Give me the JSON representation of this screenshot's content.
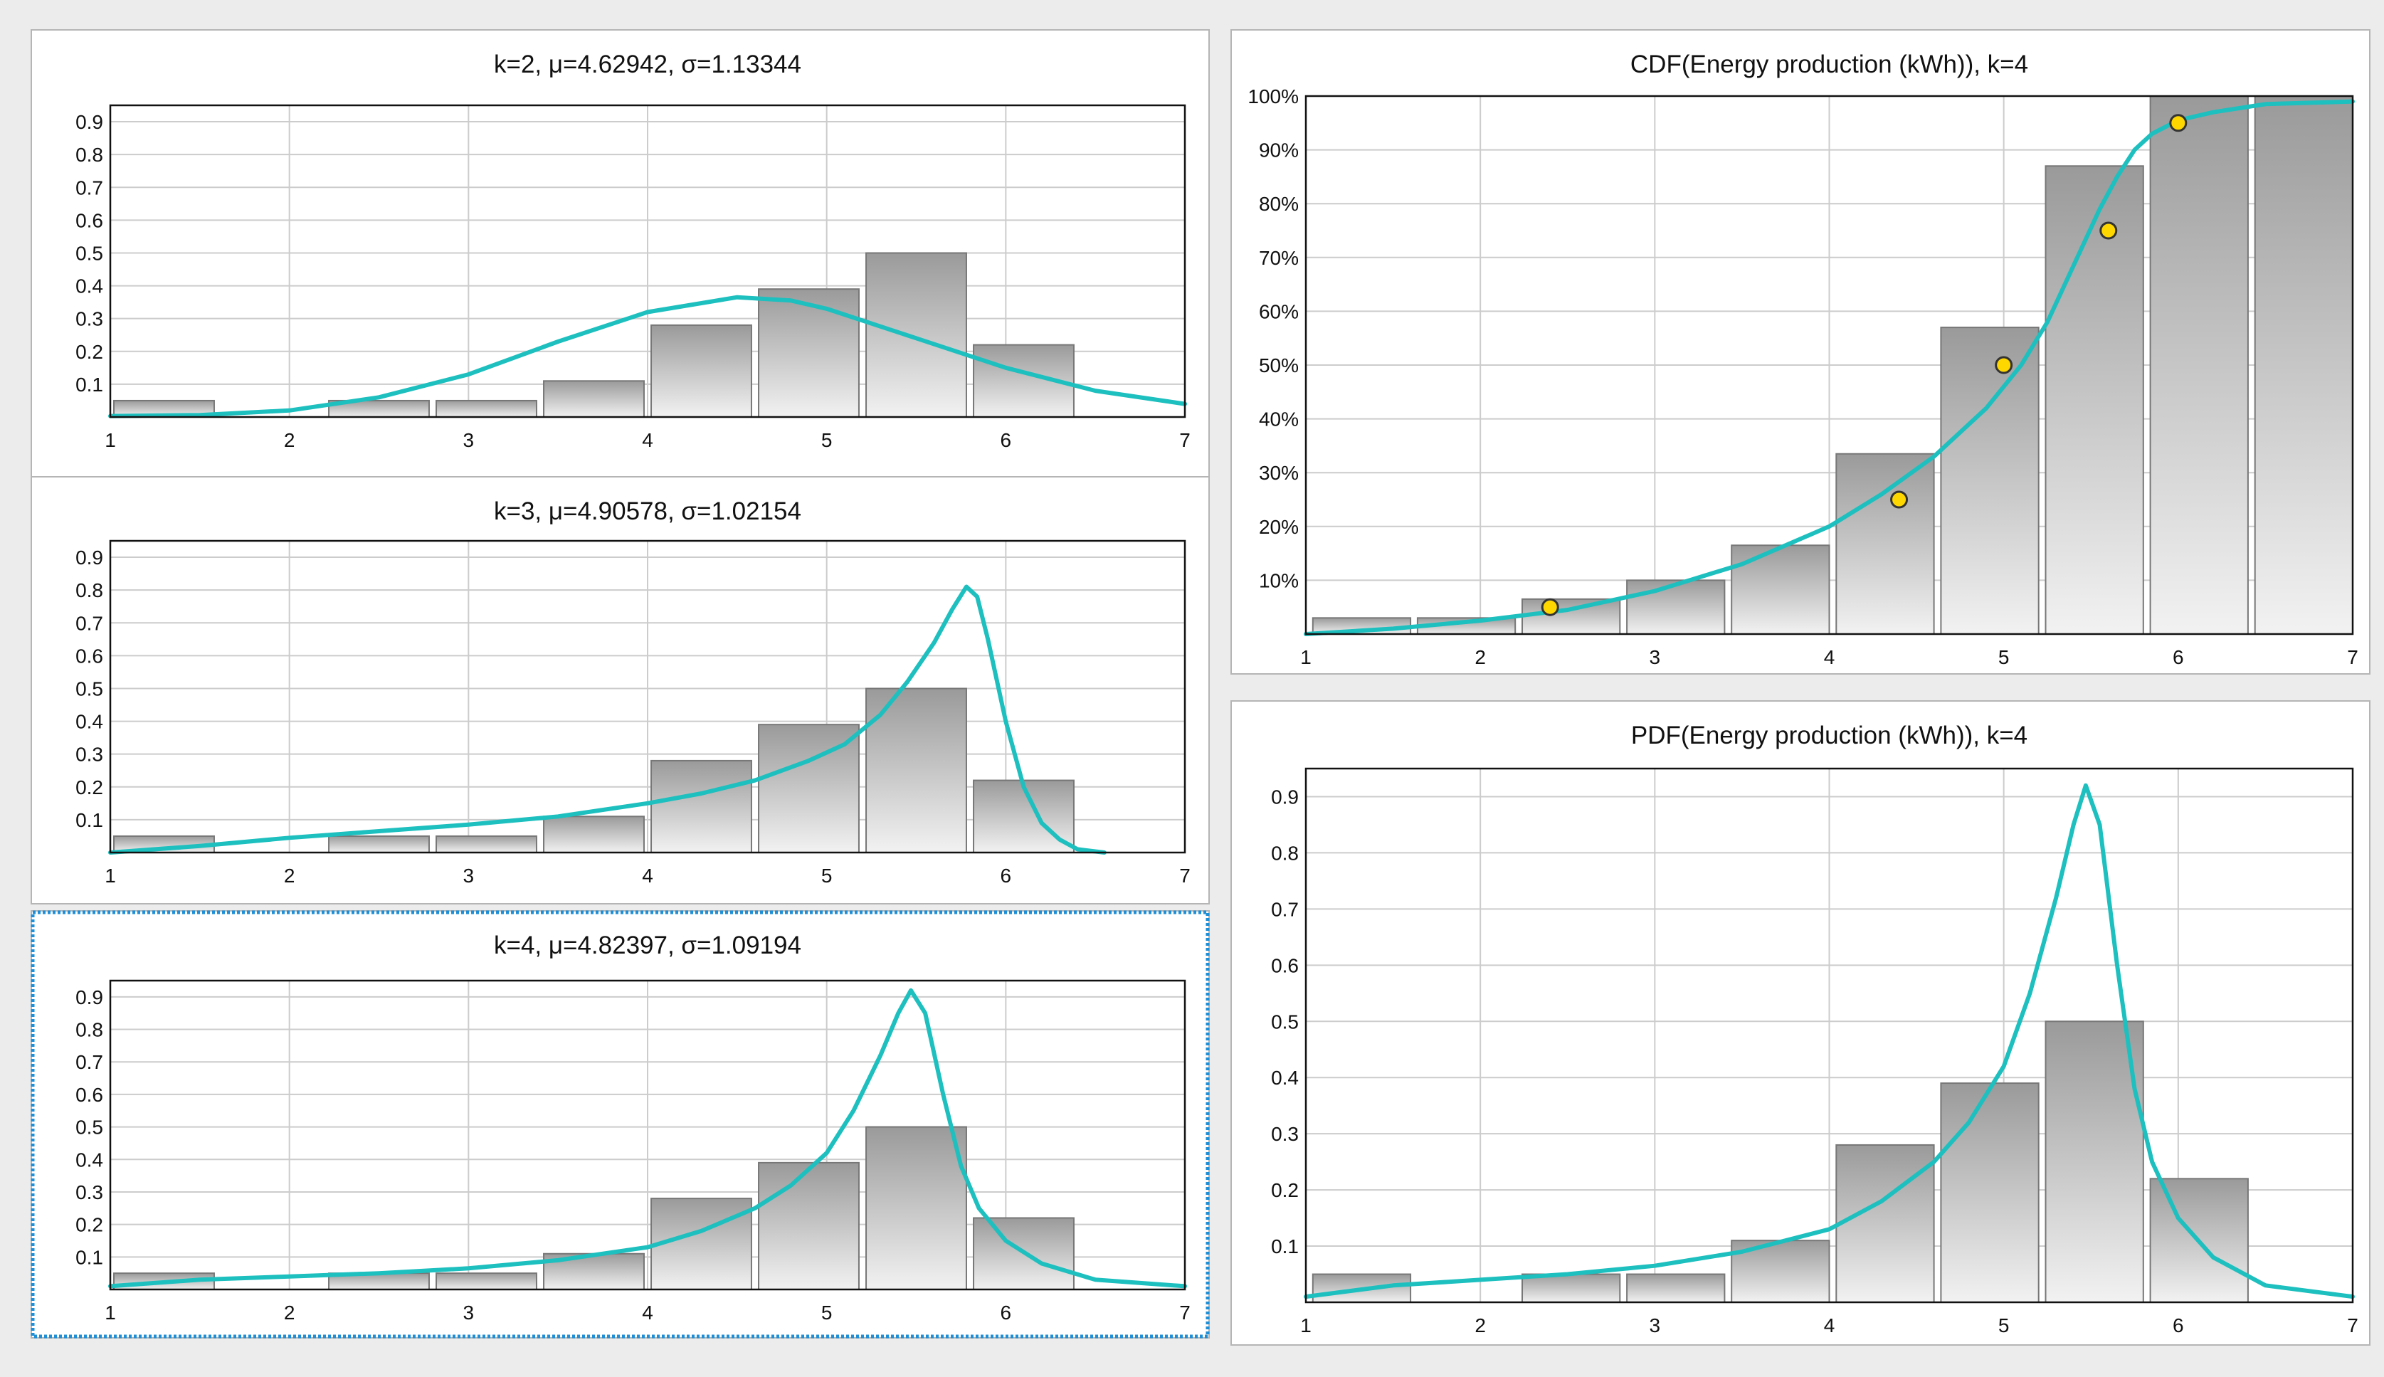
{
  "colors": {
    "curve": "#1ebfbf",
    "point_fill": "#ffd700",
    "point_stroke": "#333333",
    "selected_border": "#1e8fd6",
    "panel_bg": "#ffffff",
    "grid": "#cccccc"
  },
  "chart_data": [
    {
      "id": "k2",
      "type": "bar",
      "title": "k=2, μ=4.62942, σ=1.13344",
      "xlim": [
        1,
        7
      ],
      "ylim": [
        0,
        0.95
      ],
      "x_ticks": [
        "1",
        "2",
        "3",
        "4",
        "5",
        "6",
        "7"
      ],
      "y_ticks": [
        "0.1",
        "0.2",
        "0.3",
        "0.4",
        "0.5",
        "0.6",
        "0.7",
        "0.8",
        "0.9"
      ],
      "bars": [
        {
          "x0": 1.02,
          "x1": 1.58,
          "value": 0.05
        },
        {
          "x0": 2.22,
          "x1": 2.78,
          "value": 0.05
        },
        {
          "x0": 2.82,
          "x1": 3.38,
          "value": 0.05
        },
        {
          "x0": 3.42,
          "x1": 3.98,
          "value": 0.11
        },
        {
          "x0": 4.02,
          "x1": 4.58,
          "value": 0.28
        },
        {
          "x0": 4.62,
          "x1": 5.18,
          "value": 0.39
        },
        {
          "x0": 5.22,
          "x1": 5.78,
          "value": 0.5
        },
        {
          "x0": 5.82,
          "x1": 6.38,
          "value": 0.22
        }
      ],
      "curve": {
        "x": [
          1,
          1.5,
          2,
          2.5,
          3,
          3.5,
          4,
          4.5,
          4.8,
          5,
          5.5,
          6,
          6.5,
          7
        ],
        "y": [
          0.003,
          0.006,
          0.02,
          0.06,
          0.13,
          0.23,
          0.32,
          0.365,
          0.355,
          0.33,
          0.24,
          0.15,
          0.08,
          0.04
        ]
      },
      "selected": false
    },
    {
      "id": "k3",
      "type": "bar",
      "title": "k=3, μ=4.90578, σ=1.02154",
      "xlim": [
        1,
        7
      ],
      "ylim": [
        0,
        0.95
      ],
      "x_ticks": [
        "1",
        "2",
        "3",
        "4",
        "5",
        "6",
        "7"
      ],
      "y_ticks": [
        "0.1",
        "0.2",
        "0.3",
        "0.4",
        "0.5",
        "0.6",
        "0.7",
        "0.8",
        "0.9"
      ],
      "bars": [
        {
          "x0": 1.02,
          "x1": 1.58,
          "value": 0.05
        },
        {
          "x0": 2.22,
          "x1": 2.78,
          "value": 0.05
        },
        {
          "x0": 2.82,
          "x1": 3.38,
          "value": 0.05
        },
        {
          "x0": 3.42,
          "x1": 3.98,
          "value": 0.11
        },
        {
          "x0": 4.02,
          "x1": 4.58,
          "value": 0.28
        },
        {
          "x0": 4.62,
          "x1": 5.18,
          "value": 0.39
        },
        {
          "x0": 5.22,
          "x1": 5.78,
          "value": 0.5
        },
        {
          "x0": 5.82,
          "x1": 6.38,
          "value": 0.22
        }
      ],
      "curve": {
        "x": [
          1,
          1.5,
          2,
          2.5,
          3,
          3.5,
          4,
          4.3,
          4.6,
          4.9,
          5.1,
          5.3,
          5.45,
          5.6,
          5.7,
          5.78,
          5.84,
          5.9,
          6,
          6.1,
          6.2,
          6.3,
          6.4,
          6.55
        ],
        "y": [
          0.0,
          0.02,
          0.045,
          0.065,
          0.085,
          0.11,
          0.15,
          0.18,
          0.22,
          0.28,
          0.33,
          0.42,
          0.52,
          0.64,
          0.74,
          0.81,
          0.78,
          0.65,
          0.4,
          0.2,
          0.09,
          0.04,
          0.01,
          0.0
        ]
      },
      "selected": false
    },
    {
      "id": "k4",
      "type": "bar",
      "title": "k=4, μ=4.82397, σ=1.09194",
      "xlim": [
        1,
        7
      ],
      "ylim": [
        0,
        0.95
      ],
      "x_ticks": [
        "1",
        "2",
        "3",
        "4",
        "5",
        "6",
        "7"
      ],
      "y_ticks": [
        "0.1",
        "0.2",
        "0.3",
        "0.4",
        "0.5",
        "0.6",
        "0.7",
        "0.8",
        "0.9"
      ],
      "bars": [
        {
          "x0": 1.02,
          "x1": 1.58,
          "value": 0.05
        },
        {
          "x0": 2.22,
          "x1": 2.78,
          "value": 0.05
        },
        {
          "x0": 2.82,
          "x1": 3.38,
          "value": 0.05
        },
        {
          "x0": 3.42,
          "x1": 3.98,
          "value": 0.11
        },
        {
          "x0": 4.02,
          "x1": 4.58,
          "value": 0.28
        },
        {
          "x0": 4.62,
          "x1": 5.18,
          "value": 0.39
        },
        {
          "x0": 5.22,
          "x1": 5.78,
          "value": 0.5
        },
        {
          "x0": 5.82,
          "x1": 6.38,
          "value": 0.22
        }
      ],
      "curve": {
        "x": [
          1,
          1.5,
          2,
          2.5,
          3,
          3.5,
          4,
          4.3,
          4.6,
          4.8,
          5,
          5.15,
          5.3,
          5.4,
          5.47,
          5.55,
          5.65,
          5.75,
          5.85,
          6,
          6.2,
          6.5,
          7
        ],
        "y": [
          0.01,
          0.03,
          0.04,
          0.05,
          0.065,
          0.09,
          0.13,
          0.18,
          0.25,
          0.32,
          0.42,
          0.55,
          0.72,
          0.85,
          0.92,
          0.85,
          0.6,
          0.38,
          0.25,
          0.15,
          0.08,
          0.03,
          0.01
        ]
      },
      "selected": true
    },
    {
      "id": "cdf",
      "type": "bar",
      "title": "CDF(Energy production (kWh)), k=4",
      "xlim": [
        1,
        7
      ],
      "ylim": [
        0,
        1.0
      ],
      "x_ticks": [
        "1",
        "2",
        "3",
        "4",
        "5",
        "6",
        "7"
      ],
      "y_ticks": [
        "10%",
        "20%",
        "30%",
        "40%",
        "50%",
        "60%",
        "70%",
        "80%",
        "90%",
        "100%"
      ],
      "bars": [
        {
          "x0": 1.04,
          "x1": 1.6,
          "value": 0.03
        },
        {
          "x0": 1.64,
          "x1": 2.2,
          "value": 0.03
        },
        {
          "x0": 2.24,
          "x1": 2.8,
          "value": 0.065
        },
        {
          "x0": 2.84,
          "x1": 3.4,
          "value": 0.1
        },
        {
          "x0": 3.44,
          "x1": 4.0,
          "value": 0.165
        },
        {
          "x0": 4.04,
          "x1": 4.6,
          "value": 0.335
        },
        {
          "x0": 4.64,
          "x1": 5.2,
          "value": 0.57
        },
        {
          "x0": 5.24,
          "x1": 5.8,
          "value": 0.87
        },
        {
          "x0": 5.84,
          "x1": 6.4,
          "value": 1.0
        },
        {
          "x0": 6.44,
          "x1": 7.0,
          "value": 1.0
        }
      ],
      "curve": {
        "x": [
          1,
          1.5,
          2,
          2.5,
          3,
          3.5,
          4,
          4.3,
          4.6,
          4.9,
          5.1,
          5.25,
          5.35,
          5.45,
          5.55,
          5.65,
          5.75,
          5.85,
          6,
          6.2,
          6.5,
          7
        ],
        "y": [
          0.0,
          0.01,
          0.025,
          0.045,
          0.08,
          0.13,
          0.2,
          0.26,
          0.33,
          0.42,
          0.5,
          0.58,
          0.65,
          0.72,
          0.79,
          0.85,
          0.9,
          0.93,
          0.955,
          0.97,
          0.985,
          0.99
        ]
      },
      "points": [
        {
          "x": 2.4,
          "y": 0.05
        },
        {
          "x": 4.4,
          "y": 0.25
        },
        {
          "x": 5.0,
          "y": 0.5
        },
        {
          "x": 5.6,
          "y": 0.75
        },
        {
          "x": 6.0,
          "y": 0.95
        }
      ],
      "selected": false
    },
    {
      "id": "pdf",
      "type": "bar",
      "title": "PDF(Energy production (kWh)), k=4",
      "xlim": [
        1,
        7
      ],
      "ylim": [
        0,
        0.95
      ],
      "x_ticks": [
        "1",
        "2",
        "3",
        "4",
        "5",
        "6",
        "7"
      ],
      "y_ticks": [
        "0.1",
        "0.2",
        "0.3",
        "0.4",
        "0.5",
        "0.6",
        "0.7",
        "0.8",
        "0.9"
      ],
      "bars": [
        {
          "x0": 1.04,
          "x1": 1.6,
          "value": 0.05
        },
        {
          "x0": 2.24,
          "x1": 2.8,
          "value": 0.05
        },
        {
          "x0": 2.84,
          "x1": 3.4,
          "value": 0.05
        },
        {
          "x0": 3.44,
          "x1": 4.0,
          "value": 0.11
        },
        {
          "x0": 4.04,
          "x1": 4.6,
          "value": 0.28
        },
        {
          "x0": 4.64,
          "x1": 5.2,
          "value": 0.39
        },
        {
          "x0": 5.24,
          "x1": 5.8,
          "value": 0.5
        },
        {
          "x0": 5.84,
          "x1": 6.4,
          "value": 0.22
        }
      ],
      "curve": {
        "x": [
          1,
          1.5,
          2,
          2.5,
          3,
          3.5,
          4,
          4.3,
          4.6,
          4.8,
          5,
          5.15,
          5.3,
          5.4,
          5.47,
          5.55,
          5.65,
          5.75,
          5.85,
          6,
          6.2,
          6.5,
          7
        ],
        "y": [
          0.01,
          0.03,
          0.04,
          0.05,
          0.065,
          0.09,
          0.13,
          0.18,
          0.25,
          0.32,
          0.42,
          0.55,
          0.72,
          0.85,
          0.92,
          0.85,
          0.6,
          0.38,
          0.25,
          0.15,
          0.08,
          0.03,
          0.01
        ]
      },
      "selected": false
    }
  ]
}
